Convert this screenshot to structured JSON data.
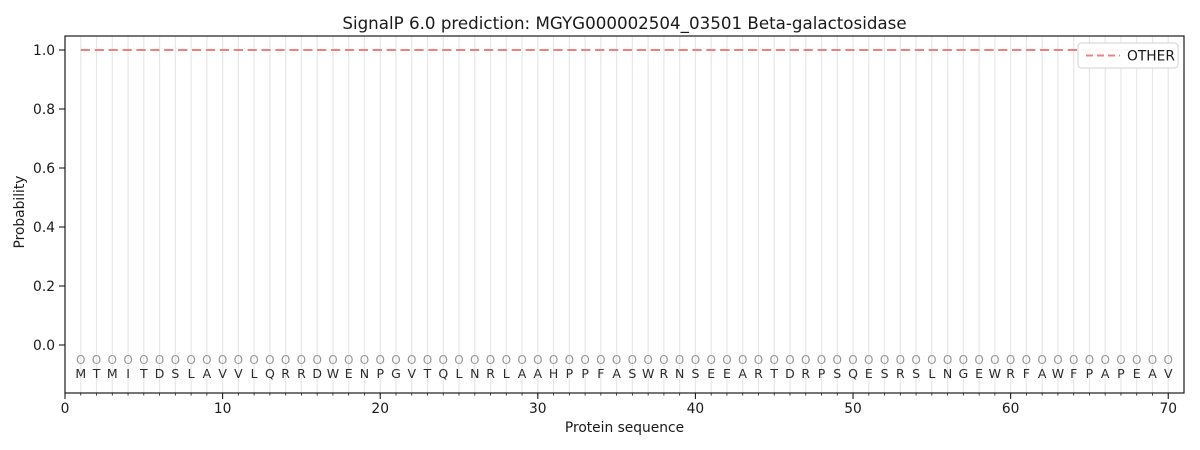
{
  "title": "SignalP 6.0 prediction: MGYG000002504_03501 Beta-galactosidase",
  "axes": {
    "xlabel": "Protein sequence",
    "ylabel": "Probability",
    "x_ticks": [
      0,
      10,
      20,
      30,
      40,
      50,
      60,
      70
    ],
    "y_ticks": [
      0.0,
      0.2,
      0.4,
      0.6,
      0.8,
      1.0
    ],
    "y_tick_labels": [
      "0.0",
      "0.2",
      "0.4",
      "0.6",
      "0.8",
      "1.0"
    ],
    "xlim": [
      0,
      71
    ],
    "grid": "vertical line at every residue position"
  },
  "legend": {
    "position": "upper right",
    "entries": [
      {
        "label": "OTHER",
        "color": "#f08080",
        "linestyle": "dashed"
      }
    ]
  },
  "sequence": {
    "length": 70,
    "residues": "MTMITDSLAVVLQRRDWENPGVTQLNRLAAHPPFASWRNSEEARTDRPSQESRSLNGEWRFAWFPAPEAV",
    "pred_labels": "OOOOOOOOOOOOOOOOOOOOOOOOOOOOOOOOOOOOOOOOOOOOOOOOOOOOOOOOOOOOOOOOOOOOOO"
  },
  "chart_data": {
    "type": "line",
    "title": "SignalP 6.0 prediction: MGYG000002504_03501 Beta-galactosidase",
    "xlabel": "Protein sequence",
    "ylabel": "Probability",
    "xlim": [
      0,
      71
    ],
    "ylim": [
      -0.16,
      1.05
    ],
    "grid": "vertical, per residue",
    "legend_position": "upper right",
    "series": [
      {
        "name": "OTHER",
        "color": "#f08080",
        "linestyle": "dashed",
        "x": [
          1,
          2,
          3,
          4,
          5,
          6,
          7,
          8,
          9,
          10,
          11,
          12,
          13,
          14,
          15,
          16,
          17,
          18,
          19,
          20,
          21,
          22,
          23,
          24,
          25,
          26,
          27,
          28,
          29,
          30,
          31,
          32,
          33,
          34,
          35,
          36,
          37,
          38,
          39,
          40,
          41,
          42,
          43,
          44,
          45,
          46,
          47,
          48,
          49,
          50,
          51,
          52,
          53,
          54,
          55,
          56,
          57,
          58,
          59,
          60,
          61,
          62,
          63,
          64,
          65,
          66,
          67,
          68,
          69,
          70
        ],
        "values": [
          1.0,
          1.0,
          1.0,
          1.0,
          1.0,
          1.0,
          1.0,
          1.0,
          1.0,
          1.0,
          1.0,
          1.0,
          1.0,
          1.0,
          1.0,
          1.0,
          1.0,
          1.0,
          1.0,
          1.0,
          1.0,
          1.0,
          1.0,
          1.0,
          1.0,
          1.0,
          1.0,
          1.0,
          1.0,
          1.0,
          1.0,
          1.0,
          1.0,
          1.0,
          1.0,
          1.0,
          1.0,
          1.0,
          1.0,
          1.0,
          1.0,
          1.0,
          1.0,
          1.0,
          1.0,
          1.0,
          1.0,
          1.0,
          1.0,
          1.0,
          1.0,
          1.0,
          1.0,
          1.0,
          1.0,
          1.0,
          1.0,
          1.0,
          1.0,
          1.0,
          1.0,
          1.0,
          1.0,
          1.0,
          1.0,
          1.0,
          1.0,
          1.0,
          1.0,
          1.0
        ]
      }
    ]
  },
  "colors": {
    "other_line": "#f08080",
    "grid": "#e7e7e7",
    "marker_gray": "#979797",
    "text": "#1a1a1a",
    "legend_border": "#d2d2d2",
    "background": "#ffffff"
  }
}
